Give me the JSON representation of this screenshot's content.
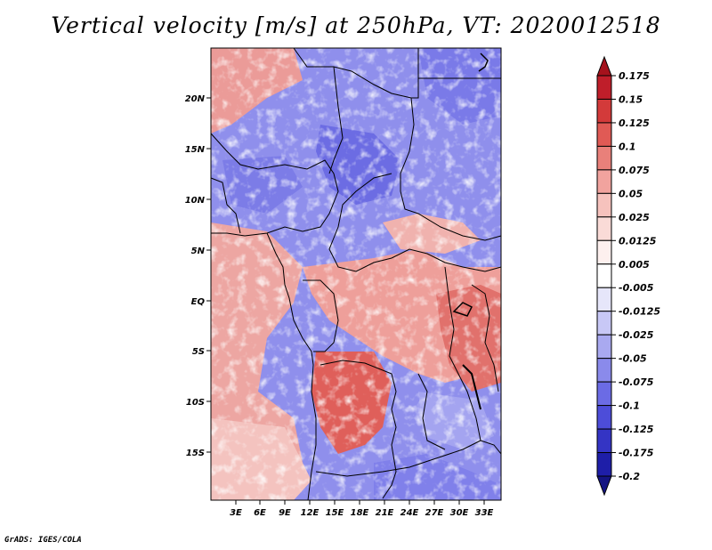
{
  "title": "Vertical velocity [m/s] at 250hPa, VT: 2020012518",
  "credit": "GrADS: IGES/COLA",
  "map": {
    "lat_ticks": [
      "20N",
      "15N",
      "10N",
      "5N",
      "EQ",
      "5S",
      "10S",
      "15S"
    ],
    "lon_ticks": [
      "3E",
      "6E",
      "9E",
      "12E",
      "15E",
      "18E",
      "21E",
      "24E",
      "27E",
      "30E",
      "33E"
    ]
  },
  "colorbar": {
    "levels": [
      "0.175",
      "0.15",
      "0.125",
      "0.1",
      "0.075",
      "0.05",
      "0.025",
      "0.0125",
      "0.005",
      "-0.005",
      "-0.0125",
      "-0.025",
      "-0.05",
      "-0.075",
      "-0.1",
      "-0.125",
      "-0.175",
      "-0.2"
    ],
    "colors": [
      "#a5121c",
      "#bf1e2a",
      "#d33a3a",
      "#e05a55",
      "#e9807a",
      "#f1a39e",
      "#f6c2bd",
      "#fadbd7",
      "#fdf0ee",
      "#ffffff",
      "#e6e6fa",
      "#c8c8f6",
      "#a9a9f0",
      "#8a8aeb",
      "#6b6be5",
      "#4d4dd9",
      "#3434c4",
      "#1e1ea8",
      "#141482"
    ]
  }
}
